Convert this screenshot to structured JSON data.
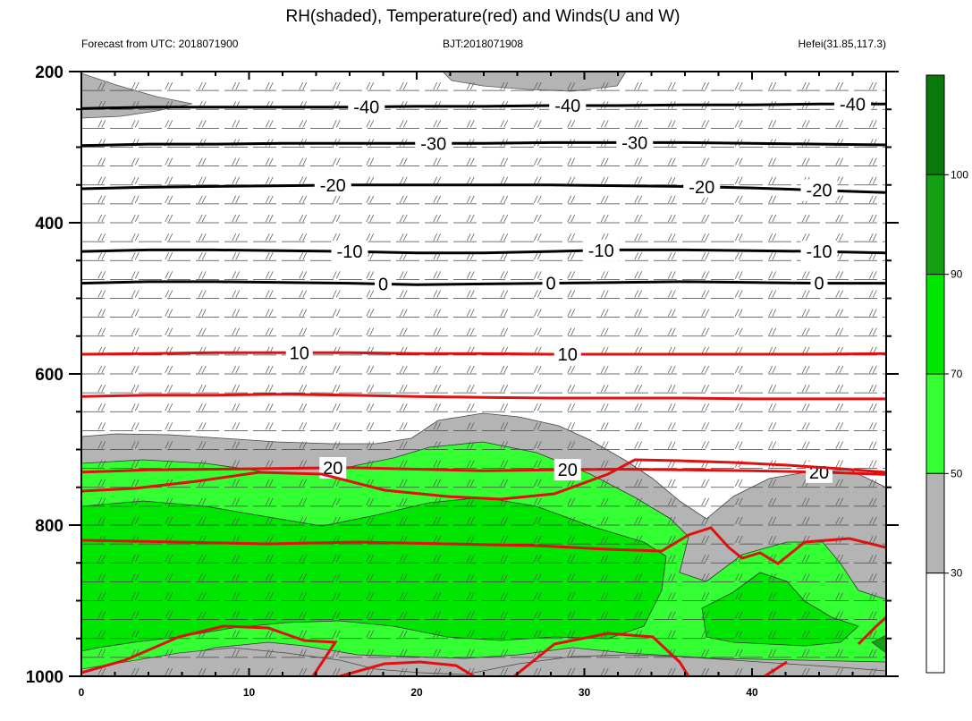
{
  "chart_data": {
    "type": "heatmap",
    "title": "RH(shaded), Temperature(red) and Winds(U and W)",
    "left_subtitle": "Forecast from UTC: 2018071900",
    "center_subtitle": "BJT:2018071908",
    "right_subtitle": "Hefei(31.85,117.3)",
    "xlim": [
      0,
      48
    ],
    "x_ticks": [
      0,
      10,
      20,
      30,
      40
    ],
    "ylim": [
      1000,
      200
    ],
    "y_ticks": [
      200,
      400,
      600,
      800,
      1000
    ],
    "colorbar": {
      "levels": [
        30,
        50,
        70,
        90,
        100
      ],
      "colors": [
        "#ffffff",
        "#b4b4b4",
        "#33ff33",
        "#00e600",
        "#14a014",
        "#0a780a"
      ]
    },
    "temperature_contours": [
      {
        "value": -40,
        "label": "-40",
        "color": "#000000",
        "p": [
          249,
          247,
          247,
          247,
          247,
          246,
          246,
          245,
          245,
          244,
          244,
          243,
          243
        ],
        "label_x": [
          17,
          29,
          46
        ]
      },
      {
        "value": -30,
        "label": "-30",
        "color": "#000000",
        "p": [
          298,
          296,
          296,
          295,
          295,
          295,
          295,
          294,
          294,
          294,
          295,
          296,
          297
        ],
        "label_x": [
          21,
          33
        ]
      },
      {
        "value": -20,
        "label": "-20",
        "color": "#000000",
        "p": [
          355,
          353,
          352,
          351,
          350,
          350,
          350,
          350,
          351,
          352,
          354,
          357,
          360
        ],
        "label_x": [
          15,
          37,
          44
        ]
      },
      {
        "value": -10,
        "label": "-10",
        "color": "#000000",
        "p": [
          438,
          436,
          436,
          437,
          438,
          440,
          440,
          438,
          436,
          436,
          437,
          438,
          440
        ],
        "label_x": [
          16,
          31,
          44
        ]
      },
      {
        "value": 0,
        "label": "0",
        "color": "#000000",
        "p": [
          480,
          478,
          478,
          479,
          480,
          482,
          481,
          480,
          479,
          478,
          479,
          480,
          480
        ],
        "label_x": [
          18,
          28,
          44
        ]
      },
      {
        "value": 10,
        "label": "10",
        "color": "#e01010",
        "p": [
          574,
          573,
          572,
          572,
          572,
          573,
          573,
          574,
          574,
          574,
          574,
          574,
          573
        ],
        "label_x": [
          13,
          29
        ]
      },
      {
        "value": 10,
        "label": "",
        "color": "#e01010",
        "p": [
          630,
          628,
          628,
          627,
          628,
          630,
          631,
          632,
          632,
          632,
          633,
          633,
          633
        ],
        "label_x": []
      },
      {
        "value": 20,
        "label": "20",
        "color": "#e01010",
        "p": [
          730,
          727,
          726,
          725,
          724,
          726,
          728,
          727,
          726,
          727,
          728,
          730,
          733
        ],
        "label_x": [
          15,
          29,
          44
        ]
      }
    ],
    "wind": "barbs"
  }
}
